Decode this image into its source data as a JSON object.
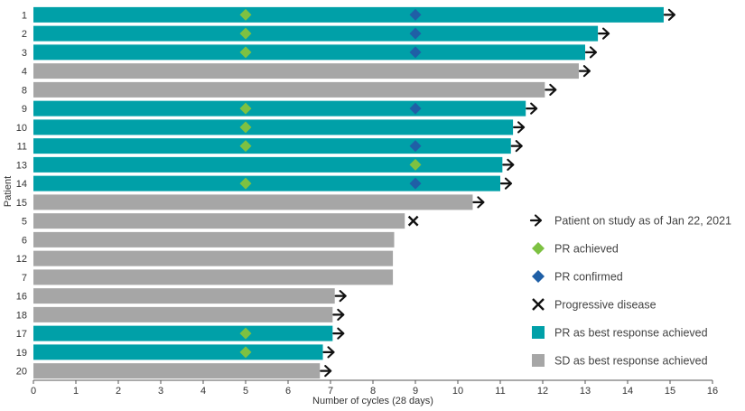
{
  "chart_data": {
    "type": "bar",
    "orientation": "horizontal",
    "title": "",
    "xlabel": "Number of cycles (28 days)",
    "ylabel": "Patient",
    "xlim": [
      0,
      16
    ],
    "x_ticks": [
      "0",
      "1",
      "2",
      "3",
      "4",
      "5",
      "6",
      "7",
      "8",
      "9",
      "10",
      "11",
      "12",
      "13",
      "14",
      "15",
      "16"
    ],
    "grid": false,
    "legend_position": "right",
    "colors": {
      "pr_bar": "#00A0A8",
      "sd_bar": "#A6A6A6",
      "pr_achieved": "#7DC142",
      "pr_confirmed": "#1F5FA6",
      "marker": "#111111"
    },
    "patients": [
      {
        "id": "1",
        "cycles": 14.85,
        "best_response": "PR",
        "on_study": true,
        "pr_achieved": 5,
        "pr_confirmed": 9,
        "progressive": null
      },
      {
        "id": "2",
        "cycles": 13.3,
        "best_response": "PR",
        "on_study": true,
        "pr_achieved": 5,
        "pr_confirmed": 9,
        "progressive": null
      },
      {
        "id": "3",
        "cycles": 13.0,
        "best_response": "PR",
        "on_study": true,
        "pr_achieved": 5,
        "pr_confirmed": 9,
        "progressive": null
      },
      {
        "id": "4",
        "cycles": 12.85,
        "best_response": "SD",
        "on_study": true,
        "pr_achieved": null,
        "pr_confirmed": null,
        "progressive": null
      },
      {
        "id": "8",
        "cycles": 12.05,
        "best_response": "SD",
        "on_study": true,
        "pr_achieved": null,
        "pr_confirmed": null,
        "progressive": null
      },
      {
        "id": "9",
        "cycles": 11.6,
        "best_response": "PR",
        "on_study": true,
        "pr_achieved": 5,
        "pr_confirmed": 9,
        "progressive": null
      },
      {
        "id": "10",
        "cycles": 11.3,
        "best_response": "PR",
        "on_study": true,
        "pr_achieved": 5,
        "pr_confirmed": null,
        "progressive": null
      },
      {
        "id": "11",
        "cycles": 11.25,
        "best_response": "PR",
        "on_study": true,
        "pr_achieved": 5,
        "pr_confirmed": 9,
        "progressive": null
      },
      {
        "id": "13",
        "cycles": 11.05,
        "best_response": "PR",
        "on_study": true,
        "pr_achieved": 9,
        "pr_confirmed": null,
        "progressive": null
      },
      {
        "id": "14",
        "cycles": 11.0,
        "best_response": "PR",
        "on_study": true,
        "pr_achieved": 5,
        "pr_confirmed": 9,
        "progressive": null
      },
      {
        "id": "15",
        "cycles": 10.35,
        "best_response": "SD",
        "on_study": true,
        "pr_achieved": null,
        "pr_confirmed": null,
        "progressive": null
      },
      {
        "id": "5",
        "cycles": 8.75,
        "best_response": "SD",
        "on_study": false,
        "pr_achieved": null,
        "pr_confirmed": null,
        "progressive": 8.95
      },
      {
        "id": "6",
        "cycles": 8.5,
        "best_response": "SD",
        "on_study": false,
        "pr_achieved": null,
        "pr_confirmed": null,
        "progressive": null
      },
      {
        "id": "12",
        "cycles": 8.47,
        "best_response": "SD",
        "on_study": false,
        "pr_achieved": null,
        "pr_confirmed": null,
        "progressive": null
      },
      {
        "id": "7",
        "cycles": 8.47,
        "best_response": "SD",
        "on_study": false,
        "pr_achieved": null,
        "pr_confirmed": null,
        "progressive": null
      },
      {
        "id": "16",
        "cycles": 7.1,
        "best_response": "SD",
        "on_study": true,
        "pr_achieved": null,
        "pr_confirmed": null,
        "progressive": null
      },
      {
        "id": "18",
        "cycles": 7.05,
        "best_response": "SD",
        "on_study": true,
        "pr_achieved": null,
        "pr_confirmed": null,
        "progressive": null
      },
      {
        "id": "17",
        "cycles": 7.05,
        "best_response": "PR",
        "on_study": true,
        "pr_achieved": 5,
        "pr_confirmed": null,
        "progressive": null
      },
      {
        "id": "19",
        "cycles": 6.82,
        "best_response": "PR",
        "on_study": true,
        "pr_achieved": 5,
        "pr_confirmed": null,
        "progressive": null
      },
      {
        "id": "20",
        "cycles": 6.75,
        "best_response": "SD",
        "on_study": true,
        "pr_achieved": null,
        "pr_confirmed": null,
        "progressive": null
      }
    ],
    "legend": [
      {
        "key": "on_study",
        "label": "Patient on study as of Jan 22, 2021"
      },
      {
        "key": "pr_achieved",
        "label": "PR achieved"
      },
      {
        "key": "pr_confirmed",
        "label": "PR confirmed"
      },
      {
        "key": "progressive",
        "label": "Progressive disease"
      },
      {
        "key": "pr_bar",
        "label": "PR as best response achieved"
      },
      {
        "key": "sd_bar",
        "label": "SD as best response achieved"
      }
    ]
  }
}
